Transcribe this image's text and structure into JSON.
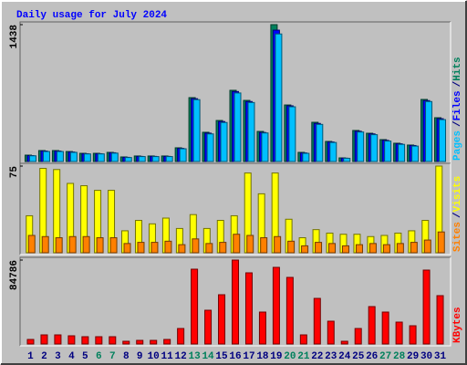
{
  "chart_data": [
    {
      "type": "bar",
      "title": "Daily usage for July 2024",
      "ylim": [
        0,
        1438
      ],
      "yticks": [
        1438
      ],
      "legend_separator": "/",
      "series": [
        {
          "name": "Hits",
          "color": "#00805c",
          "values": [
            67,
            115,
            115,
            105,
            86,
            86,
            96,
            48,
            58,
            58,
            58,
            144,
            671,
            307,
            431,
            748,
            642,
            316,
            1438,
            594,
            96,
            412,
            211,
            38,
            326,
            297,
            230,
            192,
            173,
            652,
            460
          ]
        },
        {
          "name": "Files",
          "color": "#0000ff",
          "values": [
            62,
            110,
            110,
            100,
            82,
            82,
            92,
            44,
            54,
            54,
            54,
            138,
            660,
            298,
            420,
            735,
            630,
            305,
            1380,
            585,
            90,
            400,
            205,
            35,
            318,
            290,
            222,
            186,
            168,
            640,
            450
          ]
        },
        {
          "name": "Pages",
          "color": "#00c0ff",
          "values": [
            60,
            105,
            105,
            96,
            80,
            80,
            88,
            42,
            52,
            52,
            52,
            134,
            650,
            290,
            410,
            720,
            620,
            300,
            1340,
            575,
            86,
            390,
            200,
            34,
            310,
            282,
            215,
            180,
            162,
            630,
            440
          ]
        }
      ]
    },
    {
      "type": "bar",
      "ylim": [
        0,
        75
      ],
      "yticks": [
        75
      ],
      "legend_separator": "/",
      "series": [
        {
          "name": "Visits",
          "color": "#ffff00",
          "values": [
            32,
            73,
            72,
            60,
            58,
            54,
            54,
            19,
            28,
            25,
            30,
            21,
            33,
            21,
            28,
            32,
            69,
            51,
            69,
            29,
            13,
            20,
            17,
            16,
            16,
            14,
            15,
            17,
            19,
            28,
            75
          ]
        },
        {
          "name": "Sites",
          "color": "#ff8000",
          "values": [
            15,
            14,
            13,
            14,
            14,
            13,
            13,
            8,
            9,
            9,
            10,
            7,
            12,
            8,
            9,
            16,
            15,
            13,
            14,
            10,
            6,
            9,
            8,
            6,
            7,
            8,
            7,
            8,
            9,
            11,
            18
          ]
        }
      ]
    },
    {
      "type": "bar",
      "ylim": [
        0,
        84786
      ],
      "yticks": [
        84786
      ],
      "categories": [
        "1",
        "2",
        "3",
        "4",
        "5",
        "6",
        "7",
        "8",
        "9",
        "10",
        "11",
        "12",
        "13",
        "14",
        "15",
        "16",
        "17",
        "18",
        "19",
        "20",
        "21",
        "22",
        "23",
        "24",
        "25",
        "26",
        "27",
        "28",
        "29",
        "30",
        "31"
      ],
      "highlight": {
        "indices": [
          5,
          6,
          12,
          13,
          19,
          20,
          26,
          27
        ],
        "color": "#00805c"
      },
      "label_color": "#000080",
      "series": [
        {
          "name": "KBytes",
          "color": "#ff0000",
          "values": [
            4608,
            9216,
            9216,
            8294,
            7373,
            7373,
            7373,
            2765,
            3686,
            3686,
            4608,
            15667,
            75571,
            34099,
            49766,
            84786,
            71885,
            32256,
            77414,
            67277,
            9216,
            46080,
            23040,
            2765,
            15667,
            37786,
            32256,
            22118,
            18432,
            74650,
            48845
          ]
        }
      ]
    }
  ]
}
